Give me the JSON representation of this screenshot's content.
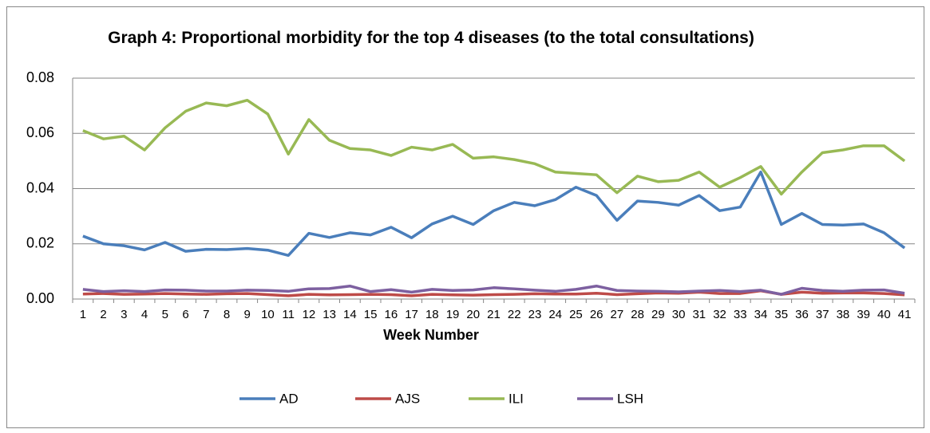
{
  "chart_data": {
    "type": "line",
    "title": "Graph 4: Proportional morbidity for the top 4 diseases (to the total consultations)",
    "x_label": "Week Number",
    "categories": [
      "1",
      "2",
      "3",
      "4",
      "5",
      "6",
      "7",
      "8",
      "9",
      "10",
      "11",
      "12",
      "13",
      "14",
      "15",
      "16",
      "17",
      "18",
      "19",
      "20",
      "21",
      "22",
      "23",
      "24",
      "25",
      "26",
      "27",
      "28",
      "29",
      "30",
      "31",
      "32",
      "33",
      "34",
      "35",
      "36",
      "37",
      "38",
      "39",
      "40",
      "41"
    ],
    "series": [
      {
        "name": "AD",
        "color": "#4a7ebb",
        "values": [
          0.0228,
          0.02,
          0.0193,
          0.0178,
          0.0205,
          0.0173,
          0.018,
          0.0179,
          0.0183,
          0.0177,
          0.0158,
          0.0238,
          0.0223,
          0.024,
          0.0232,
          0.026,
          0.0222,
          0.0272,
          0.03,
          0.027,
          0.032,
          0.035,
          0.0338,
          0.036,
          0.0405,
          0.0375,
          0.0285,
          0.0355,
          0.035,
          0.034,
          0.0375,
          0.032,
          0.0333,
          0.046,
          0.027,
          0.031,
          0.027,
          0.0268,
          0.0272,
          0.024,
          0.0185
        ]
      },
      {
        "name": "AJS",
        "color": "#be4b48",
        "values": [
          0.0018,
          0.002,
          0.0017,
          0.0018,
          0.002,
          0.0018,
          0.0017,
          0.0019,
          0.002,
          0.0016,
          0.0012,
          0.0017,
          0.0015,
          0.0016,
          0.0017,
          0.0016,
          0.0012,
          0.0017,
          0.0015,
          0.0014,
          0.0016,
          0.0017,
          0.0019,
          0.0018,
          0.0018,
          0.0021,
          0.0016,
          0.0019,
          0.0022,
          0.0021,
          0.0025,
          0.002,
          0.002,
          0.003,
          0.0017,
          0.0025,
          0.0021,
          0.0022,
          0.0022,
          0.002,
          0.0015
        ]
      },
      {
        "name": "ILI",
        "color": "#98b954",
        "values": [
          0.061,
          0.058,
          0.059,
          0.054,
          0.062,
          0.068,
          0.071,
          0.07,
          0.072,
          0.067,
          0.0525,
          0.065,
          0.0575,
          0.0545,
          0.054,
          0.052,
          0.055,
          0.054,
          0.056,
          0.051,
          0.0515,
          0.0505,
          0.049,
          0.046,
          0.0455,
          0.045,
          0.0385,
          0.0445,
          0.0425,
          0.043,
          0.046,
          0.0405,
          0.044,
          0.048,
          0.038,
          0.046,
          0.053,
          0.054,
          0.0555,
          0.0555,
          0.05
        ]
      },
      {
        "name": "LSH",
        "color": "#7d60a0",
        "values": [
          0.0035,
          0.0027,
          0.003,
          0.0027,
          0.0033,
          0.0032,
          0.0029,
          0.0029,
          0.0032,
          0.0031,
          0.0028,
          0.0037,
          0.0038,
          0.0047,
          0.0027,
          0.0034,
          0.0025,
          0.0035,
          0.0031,
          0.0033,
          0.0041,
          0.0037,
          0.0032,
          0.0028,
          0.0035,
          0.0047,
          0.0031,
          0.0029,
          0.0028,
          0.0026,
          0.0029,
          0.0031,
          0.0027,
          0.0032,
          0.0017,
          0.0039,
          0.0031,
          0.0028,
          0.0032,
          0.0033,
          0.0021
        ]
      }
    ],
    "ylim": [
      0,
      0.08
    ],
    "yticks": [
      {
        "value": 0,
        "label": "0.00"
      },
      0.02,
      0.04,
      0.06,
      0.08
    ],
    "grid": true,
    "legend": "bottom"
  }
}
